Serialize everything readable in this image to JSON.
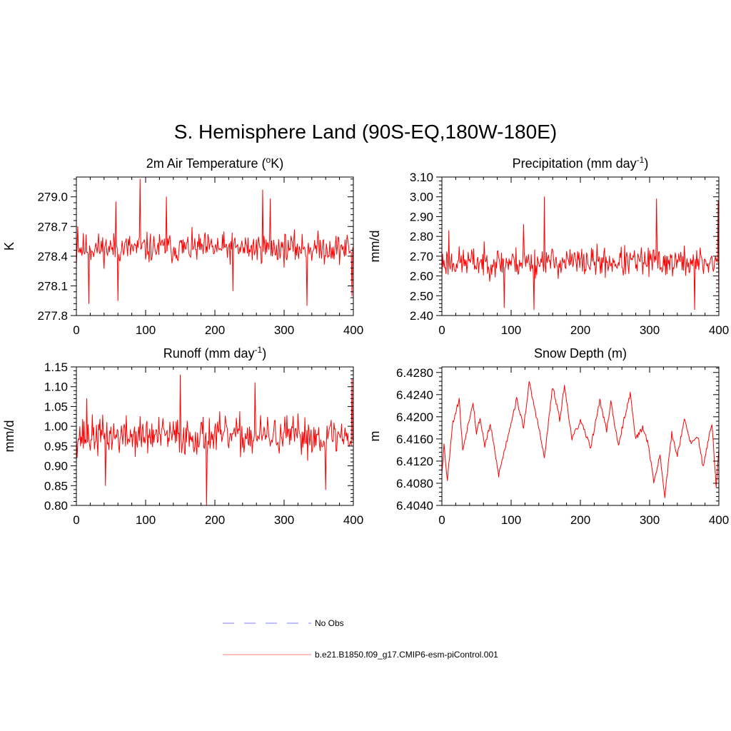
{
  "figure": {
    "title": "S. Hemisphere Land (90S-EQ,180W-180E)"
  },
  "colors": {
    "series": "#ff0000",
    "obs": "#9999ff",
    "axis": "#000000"
  },
  "legend": {
    "obs_label": "No Obs",
    "model_label": "b.e21.B1850.f09_g17.CMIP6-esm-piControl.001"
  },
  "chart_data": [
    {
      "type": "line",
      "id": "tas",
      "title": "2m Air Temperature (",
      "title_sup": "o",
      "title_after": "K)",
      "ylabel": "K",
      "xlabel": "",
      "xlim": [
        0,
        400
      ],
      "ylim": [
        277.8,
        279.2
      ],
      "xticks": [
        0,
        100,
        200,
        300,
        400
      ],
      "xtick_labels": [
        "0",
        "100",
        "200",
        "300",
        "400"
      ],
      "yticks": [
        277.8,
        278.1,
        278.4,
        278.7,
        279.0
      ],
      "ytick_labels": [
        "277.8",
        "278.1",
        "278.4",
        "278.7",
        "279.0"
      ],
      "seed": 11,
      "base": 278.48,
      "amp": 0.14,
      "walk": 0.0,
      "anchors": [
        [
          0,
          278.3
        ],
        [
          2,
          278.7
        ],
        [
          18,
          277.92
        ],
        [
          57,
          278.95
        ],
        [
          60,
          277.95
        ],
        [
          92,
          279.18
        ],
        [
          130,
          279.0
        ],
        [
          226,
          278.05
        ],
        [
          269,
          279.07
        ],
        [
          280,
          278.98
        ],
        [
          333,
          277.9
        ],
        [
          398,
          278.0
        ]
      ]
    },
    {
      "type": "line",
      "id": "pr",
      "title": "Precipitation (mm day",
      "title_sup": "-1",
      "title_after": ")",
      "ylabel": "mm/d",
      "xlabel": "",
      "xlim": [
        0,
        400
      ],
      "ylim": [
        2.4,
        3.1
      ],
      "xticks": [
        0,
        100,
        200,
        300,
        400
      ],
      "xtick_labels": [
        "0",
        "100",
        "200",
        "300",
        "400"
      ],
      "yticks": [
        2.4,
        2.5,
        2.6,
        2.7,
        2.8,
        2.9,
        3.0,
        3.1
      ],
      "ytick_labels": [
        "2.40",
        "2.50",
        "2.60",
        "2.70",
        "2.80",
        "2.90",
        "3.00",
        "3.10"
      ],
      "seed": 23,
      "base": 2.67,
      "amp": 0.07,
      "walk": 0.0,
      "anchors": [
        [
          0,
          2.6
        ],
        [
          10,
          2.83
        ],
        [
          90,
          2.44
        ],
        [
          118,
          2.86
        ],
        [
          133,
          2.43
        ],
        [
          148,
          3.0
        ],
        [
          310,
          2.99
        ],
        [
          365,
          2.43
        ],
        [
          399,
          2.98
        ],
        [
          400,
          2.44
        ]
      ]
    },
    {
      "type": "line",
      "id": "runoff",
      "title": "Runoff (mm day",
      "title_sup": "-1",
      "title_after": ")",
      "ylabel": "mm/d",
      "xlabel": "",
      "xlim": [
        0,
        400
      ],
      "ylim": [
        0.8,
        1.15
      ],
      "xticks": [
        0,
        100,
        200,
        300,
        400
      ],
      "xtick_labels": [
        "0",
        "100",
        "200",
        "300",
        "400"
      ],
      "yticks": [
        0.8,
        0.85,
        0.9,
        0.95,
        1.0,
        1.05,
        1.1,
        1.15
      ],
      "ytick_labels": [
        "0.80",
        "0.85",
        "0.90",
        "0.95",
        "1.00",
        "1.05",
        "1.10",
        "1.15"
      ],
      "seed": 37,
      "base": 0.975,
      "amp": 0.045,
      "walk": 0.0,
      "anchors": [
        [
          0,
          0.97
        ],
        [
          15,
          1.07
        ],
        [
          42,
          0.85
        ],
        [
          150,
          1.13
        ],
        [
          188,
          0.8
        ],
        [
          258,
          1.11
        ],
        [
          360,
          0.84
        ],
        [
          398,
          1.12
        ]
      ]
    },
    {
      "type": "line",
      "id": "snow",
      "title": "Snow Depth (m)",
      "title_sup": "",
      "title_after": "",
      "ylabel": "m",
      "xlabel": "",
      "xlim": [
        0,
        400
      ],
      "ylim": [
        6.404,
        6.429
      ],
      "xticks": [
        0,
        100,
        200,
        300,
        400
      ],
      "xtick_labels": [
        "0",
        "100",
        "200",
        "300",
        "400"
      ],
      "yticks": [
        6.404,
        6.408,
        6.412,
        6.416,
        6.42,
        6.424,
        6.428
      ],
      "ytick_labels": [
        "6.4040",
        "6.4080",
        "6.4120",
        "6.4160",
        "6.4200",
        "6.4240",
        "6.4280"
      ],
      "seed": 53,
      "base": 6.4165,
      "amp": 0.0009,
      "walk": 1.0,
      "keypoints": [
        [
          0,
          6.41
        ],
        [
          3,
          6.415
        ],
        [
          8,
          6.4085
        ],
        [
          15,
          6.4185
        ],
        [
          25,
          6.4232
        ],
        [
          30,
          6.414
        ],
        [
          45,
          6.4228
        ],
        [
          50,
          6.417
        ],
        [
          55,
          6.4198
        ],
        [
          62,
          6.4148
        ],
        [
          70,
          6.4186
        ],
        [
          82,
          6.4095
        ],
        [
          100,
          6.419
        ],
        [
          108,
          6.4232
        ],
        [
          118,
          6.418
        ],
        [
          126,
          6.4262
        ],
        [
          140,
          6.418
        ],
        [
          148,
          6.4125
        ],
        [
          160,
          6.4255
        ],
        [
          170,
          6.4195
        ],
        [
          177,
          6.4255
        ],
        [
          188,
          6.416
        ],
        [
          200,
          6.4192
        ],
        [
          215,
          6.4145
        ],
        [
          228,
          6.423
        ],
        [
          238,
          6.4175
        ],
        [
          244,
          6.4228
        ],
        [
          255,
          6.4145
        ],
        [
          262,
          6.419
        ],
        [
          272,
          6.4242
        ],
        [
          280,
          6.416
        ],
        [
          290,
          6.418
        ],
        [
          298,
          6.4152
        ],
        [
          306,
          6.4082
        ],
        [
          315,
          6.413
        ],
        [
          322,
          6.4058
        ],
        [
          332,
          6.417
        ],
        [
          340,
          6.413
        ],
        [
          350,
          6.4195
        ],
        [
          360,
          6.415
        ],
        [
          370,
          6.4165
        ],
        [
          377,
          6.411
        ],
        [
          390,
          6.4188
        ],
        [
          396,
          6.4075
        ],
        [
          400,
          6.414
        ]
      ]
    }
  ]
}
